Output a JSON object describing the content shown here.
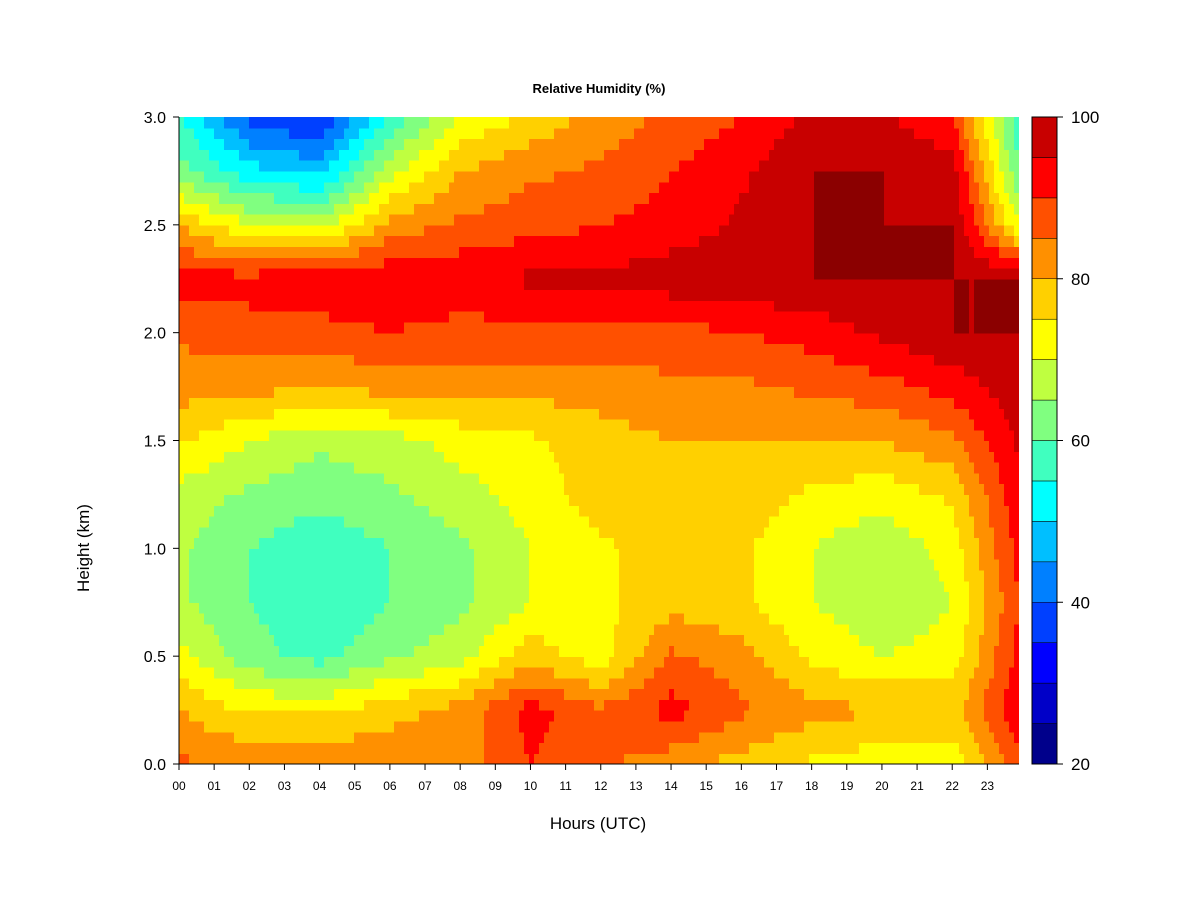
{
  "chart_data": {
    "type": "heatmap",
    "title": "Relative Humidity (%)",
    "xlabel": "Hours (UTC)",
    "ylabel": "Height (km)",
    "x_tick_labels": [
      "00",
      "01",
      "02",
      "03",
      "04",
      "05",
      "06",
      "07",
      "08",
      "09",
      "10",
      "11",
      "12",
      "13",
      "14",
      "15",
      "16",
      "17",
      "18",
      "19",
      "20",
      "21",
      "22",
      "23"
    ],
    "y_tick_labels": [
      "0.0",
      "0.5",
      "1.0",
      "1.5",
      "2.0",
      "2.5",
      "3.0"
    ],
    "y_ticks": [
      0.0,
      0.5,
      1.0,
      1.5,
      2.0,
      2.5,
      3.0
    ],
    "xlim": [
      0,
      23.9
    ],
    "ylim": [
      0,
      3.0
    ],
    "colorbar": {
      "levels": [
        20,
        25,
        30,
        35,
        40,
        45,
        50,
        55,
        60,
        65,
        70,
        75,
        80,
        85,
        90,
        95,
        100
      ],
      "tick_labels": [
        "20",
        "40",
        "60",
        "80",
        "100"
      ],
      "tick_values": [
        20,
        40,
        60,
        80,
        100
      ],
      "colors": [
        "#00008b",
        "#0000c8",
        "#0000ff",
        "#0040ff",
        "#0080ff",
        "#00bfff",
        "#00ffff",
        "#40ffbf",
        "#80ff80",
        "#bfff40",
        "#ffff00",
        "#ffd000",
        "#ff9000",
        "#ff5000",
        "#ff0000",
        "#c80000",
        "#8b0000"
      ]
    },
    "grid": false,
    "heights_km": [
      0.0,
      0.25,
      0.5,
      0.75,
      1.0,
      1.25,
      1.5,
      1.75,
      2.0,
      2.25,
      2.5,
      2.75,
      3.0
    ],
    "hours": [
      0,
      2,
      4,
      6,
      8,
      10,
      12,
      14,
      16,
      18,
      20,
      22,
      23.9
    ],
    "values": [
      [
        86,
        84,
        84,
        84,
        82,
        90,
        86,
        82,
        78,
        74,
        72,
        72,
        88
      ],
      [
        80,
        74,
        74,
        78,
        82,
        92,
        86,
        92,
        86,
        82,
        80,
        78,
        94
      ],
      [
        72,
        62,
        58,
        64,
        68,
        78,
        72,
        86,
        82,
        74,
        70,
        72,
        92
      ],
      [
        66,
        60,
        56,
        60,
        64,
        70,
        74,
        78,
        76,
        70,
        66,
        70,
        90
      ],
      [
        66,
        60,
        56,
        60,
        64,
        70,
        74,
        78,
        76,
        70,
        66,
        72,
        92
      ],
      [
        68,
        64,
        62,
        64,
        68,
        72,
        78,
        80,
        78,
        74,
        72,
        76,
        94
      ],
      [
        76,
        70,
        66,
        68,
        72,
        74,
        78,
        80,
        80,
        80,
        80,
        84,
        96
      ],
      [
        82,
        82,
        80,
        82,
        82,
        82,
        82,
        84,
        84,
        86,
        88,
        92,
        98
      ],
      [
        86,
        88,
        88,
        90,
        88,
        88,
        88,
        88,
        90,
        92,
        96,
        100,
        100
      ],
      [
        92,
        92,
        94,
        94,
        94,
        96,
        96,
        98,
        98,
        100,
        100,
        100,
        100
      ],
      [
        80,
        70,
        68,
        82,
        86,
        88,
        90,
        92,
        96,
        100,
        100,
        100,
        70
      ],
      [
        62,
        52,
        48,
        68,
        80,
        84,
        86,
        90,
        94,
        100,
        100,
        98,
        60
      ],
      [
        56,
        38,
        34,
        56,
        70,
        76,
        82,
        86,
        90,
        96,
        96,
        90,
        56
      ]
    ]
  }
}
